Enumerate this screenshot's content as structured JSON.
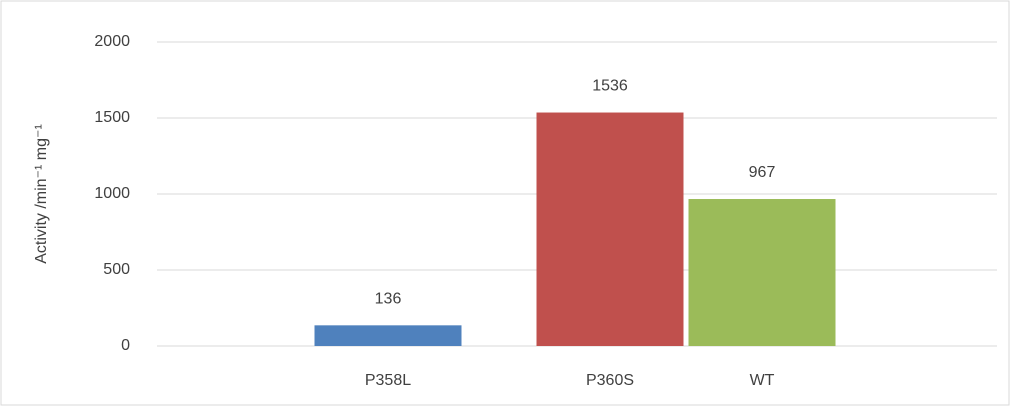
{
  "chart_data": {
    "type": "bar",
    "y_label": "Activity /min⁻¹ mg⁻¹",
    "categories": [
      "P358L",
      "P360S",
      "WT"
    ],
    "values": [
      136,
      1536,
      967
    ],
    "colors": [
      "#4f81bd",
      "#c0504d",
      "#9bbb59"
    ],
    "ylim": [
      0,
      2000
    ],
    "yticks": [
      0,
      500,
      1000,
      1500,
      2000
    ],
    "grid": true
  }
}
